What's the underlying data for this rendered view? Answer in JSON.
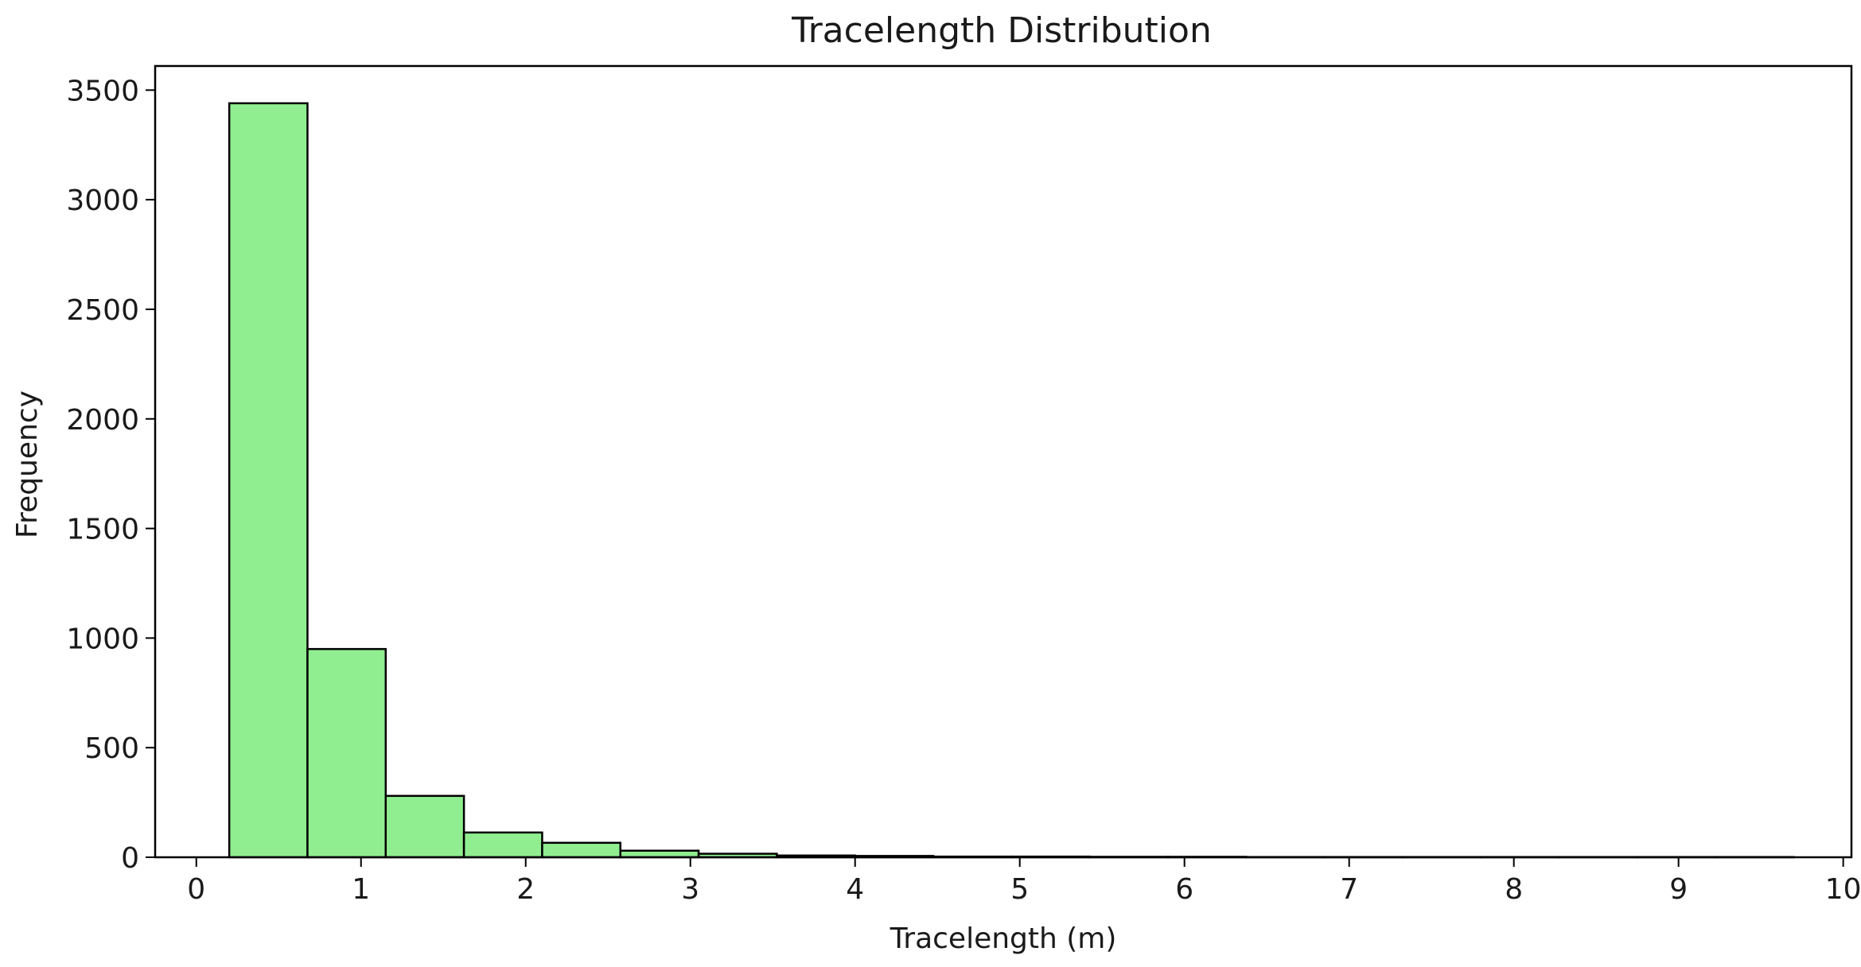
{
  "chart_data": {
    "type": "bar",
    "title": "Tracelength Distribution",
    "xlabel": "Tracelength (m)",
    "ylabel": "Frequency",
    "xlim": [
      -0.25,
      10.05
    ],
    "ylim": [
      0,
      3610
    ],
    "x_ticks": [
      0,
      1,
      2,
      3,
      4,
      5,
      6,
      7,
      8,
      9,
      10
    ],
    "y_ticks": [
      0,
      500,
      1000,
      1500,
      2000,
      2500,
      3000,
      3500
    ],
    "bin_edges": [
      0.2,
      0.675,
      1.15,
      1.625,
      2.1,
      2.575,
      3.05,
      3.525,
      4.0,
      4.475,
      4.95,
      5.425,
      5.9,
      6.375,
      6.85,
      7.325,
      7.8,
      8.275,
      8.75,
      9.225,
      9.7
    ],
    "values": [
      3440,
      950,
      280,
      113,
      66,
      30,
      16,
      8,
      6,
      3,
      3,
      2,
      2,
      1,
      1,
      1,
      1,
      1,
      1,
      1
    ],
    "bar_color": "#90ee90",
    "edge_color": "#000000",
    "grid": false,
    "legend": "none"
  }
}
